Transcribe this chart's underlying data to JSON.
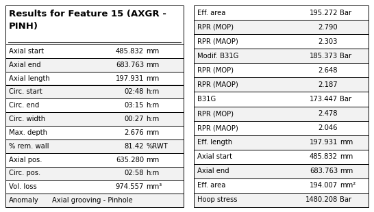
{
  "title_line1": "Results for Feature 15 (AXGR -",
  "title_line2": "PINH)",
  "left_table": [
    [
      "Axial start",
      "485.832",
      "mm"
    ],
    [
      "Axial end",
      "683.763",
      "mm"
    ],
    [
      "Axial length",
      "197.931",
      "mm"
    ],
    [
      "Circ. start",
      "02:48",
      "h:m"
    ],
    [
      "Circ. end",
      "03:15",
      "h:m"
    ],
    [
      "Circ. width",
      "00:27",
      "h:m"
    ],
    [
      "Max. depth",
      "2.676",
      "mm"
    ],
    [
      "% rem. wall",
      "81.42",
      "%RWT"
    ],
    [
      "Axial pos.",
      "635.280",
      "mm"
    ],
    [
      "Circ. pos.",
      "02:58",
      "h:m"
    ],
    [
      "Vol. loss",
      "974.557",
      "mm³"
    ],
    [
      "Anomaly",
      "Axial grooving - Pinhole",
      ""
    ]
  ],
  "right_table": [
    [
      "Eff. area",
      "195.272",
      "Bar"
    ],
    [
      "RPR (MOP)",
      "2.790",
      ""
    ],
    [
      "RPR (MAOP)",
      "2.303",
      ""
    ],
    [
      "Modif. B31G",
      "185.373",
      "Bar"
    ],
    [
      "RPR (MOP)",
      "2.648",
      ""
    ],
    [
      "RPR (MAOP)",
      "2.187",
      ""
    ],
    [
      "B31G",
      "173.447",
      "Bar"
    ],
    [
      "RPR (MOP)",
      "2.478",
      ""
    ],
    [
      "RPR (MAOP)",
      "2.046",
      ""
    ],
    [
      "Eff. length",
      "197.931",
      "mm"
    ],
    [
      "Axial start",
      "485.832",
      "mm"
    ],
    [
      "Axial end",
      "683.763",
      "mm"
    ],
    [
      "Eff. area",
      "194.007",
      "mm²"
    ],
    [
      "Hoop stress",
      "1480.208",
      "Bar"
    ]
  ],
  "bg_color": "#ffffff",
  "border_color": "#000000",
  "text_color": "#000000",
  "font_size": 7.2,
  "title_font_size": 9.5
}
